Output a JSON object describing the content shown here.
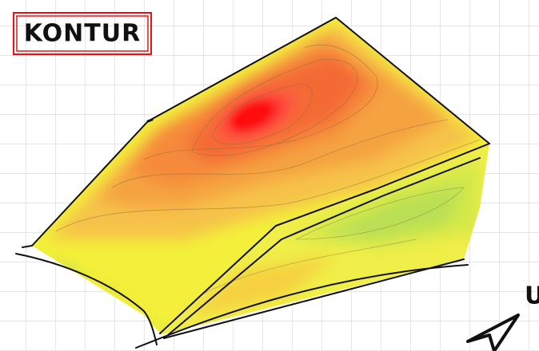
{
  "title": "KONTUR",
  "north_label": "U"
}
